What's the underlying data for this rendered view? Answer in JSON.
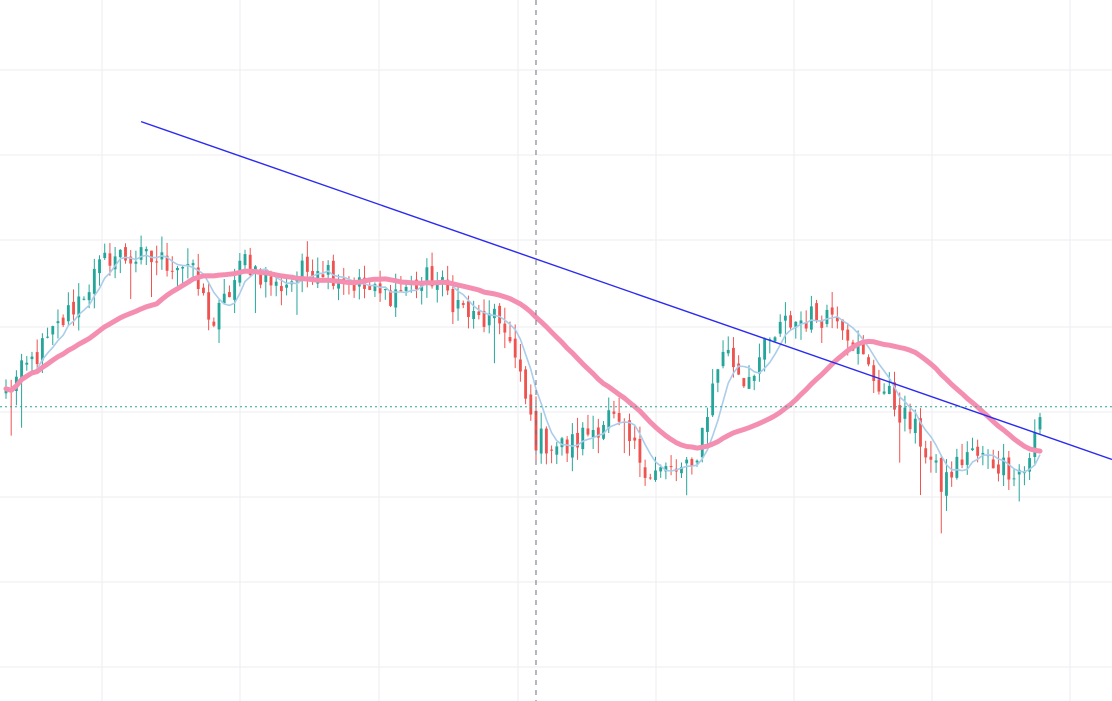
{
  "colors": {
    "background": "#ffffff",
    "grid": "#eceef2",
    "candle_up": "#26a69a",
    "candle_down": "#ef5350",
    "fast_ma": "#a9cdea",
    "slow_ma": "#f48fb1",
    "trendline": "#2b2bf0",
    "crosshair": "#6b7080",
    "price_line": "#26a69a"
  },
  "chart_data": {
    "type": "candlestick",
    "title": "",
    "xlabel": "",
    "ylabel": "",
    "grid": true,
    "bar_count": 200,
    "ylim": [
      0,
      100
    ],
    "price_path": [
      [
        0,
        45
      ],
      [
        8,
        56
      ],
      [
        20,
        75
      ],
      [
        35,
        73
      ],
      [
        40,
        60
      ],
      [
        46,
        74
      ],
      [
        52,
        68
      ],
      [
        60,
        73
      ],
      [
        72,
        66
      ],
      [
        82,
        70
      ],
      [
        90,
        61
      ],
      [
        96,
        60
      ],
      [
        102,
        35
      ],
      [
        108,
        33
      ],
      [
        116,
        40
      ],
      [
        124,
        28
      ],
      [
        132,
        28
      ],
      [
        138,
        55
      ],
      [
        142,
        48
      ],
      [
        150,
        60
      ],
      [
        160,
        63
      ],
      [
        166,
        50
      ],
      [
        176,
        35
      ],
      [
        180,
        25
      ],
      [
        185,
        32
      ],
      [
        190,
        30
      ],
      [
        196,
        28
      ],
      [
        199,
        39
      ]
    ],
    "indicators": [
      {
        "type": "moving_average",
        "period": 6
      },
      {
        "type": "moving_average",
        "period": 30
      }
    ],
    "trendline": {
      "from": {
        "bar": 26,
        "value": 104
      },
      "to": {
        "bar": 199,
        "value": 36
      }
    },
    "horizontal_price_line": 42,
    "crosshair_vertical_bar": 102
  }
}
